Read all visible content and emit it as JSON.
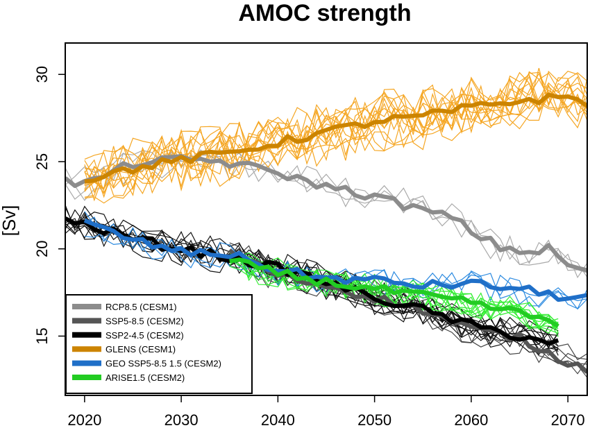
{
  "chart_data": {
    "type": "line",
    "title": "AMOC strength",
    "xlabel": "",
    "ylabel": "[Sv]",
    "xlim": [
      2018,
      2072
    ],
    "ylim": [
      11.6,
      31.8
    ],
    "xticks": [
      2020,
      2030,
      2040,
      2050,
      2060,
      2070
    ],
    "yticks": [
      15,
      20,
      25,
      30
    ],
    "grid": false,
    "legend_position": "bottom-left",
    "series": [
      {
        "name": "RCP8.5 (CESM1)",
        "color": "#8c8c8c",
        "ensemble_color": "#aaaaaa",
        "ensemble_members": 3,
        "x_start": 2018,
        "x_end": 2072,
        "mean": [
          [
            2018,
            23.9
          ],
          [
            2020,
            23.7
          ],
          [
            2025,
            24.9
          ],
          [
            2030,
            25.1
          ],
          [
            2033,
            25.1
          ],
          [
            2036,
            24.8
          ],
          [
            2040,
            24.4
          ],
          [
            2042,
            24.0
          ],
          [
            2045,
            23.6
          ],
          [
            2050,
            23.0
          ],
          [
            2055,
            22.2
          ],
          [
            2058,
            21.8
          ],
          [
            2060,
            21.0
          ],
          [
            2063,
            20.1
          ],
          [
            2066,
            19.8
          ],
          [
            2068,
            20.0
          ],
          [
            2070,
            19.1
          ],
          [
            2072,
            18.7
          ]
        ]
      },
      {
        "name": "SSP5-8.5 (CESM2)",
        "color": "#555555",
        "ensemble_color": "#444444",
        "ensemble_members": 5,
        "x_start": 2035,
        "x_end": 2072,
        "mean": [
          [
            2035,
            19.8
          ],
          [
            2040,
            18.5
          ],
          [
            2045,
            17.9
          ],
          [
            2050,
            17.2
          ],
          [
            2055,
            16.5
          ],
          [
            2060,
            15.4
          ],
          [
            2065,
            14.9
          ],
          [
            2068,
            14.0
          ],
          [
            2072,
            13.1
          ]
        ]
      },
      {
        "name": "SSP2-4.5 (CESM2)",
        "color": "#000000",
        "ensemble_color": "#111111",
        "ensemble_members": 10,
        "x_start": 2018,
        "x_end": 2069,
        "mean": [
          [
            2018,
            21.6
          ],
          [
            2020,
            21.4
          ],
          [
            2025,
            20.6
          ],
          [
            2030,
            20.0
          ],
          [
            2035,
            19.5
          ],
          [
            2040,
            18.9
          ],
          [
            2045,
            18.1
          ],
          [
            2050,
            17.2
          ],
          [
            2055,
            16.5
          ],
          [
            2060,
            15.6
          ],
          [
            2065,
            15.0
          ],
          [
            2069,
            14.6
          ]
        ]
      },
      {
        "name": "GLENS (CESM1)",
        "color": "#cc8400",
        "ensemble_color": "#f5a623",
        "ensemble_members": 14,
        "x_start": 2020,
        "x_end": 2072,
        "mean": [
          [
            2020,
            24.0
          ],
          [
            2025,
            24.6
          ],
          [
            2030,
            25.1
          ],
          [
            2035,
            25.5
          ],
          [
            2040,
            26.1
          ],
          [
            2045,
            26.7
          ],
          [
            2050,
            27.3
          ],
          [
            2055,
            27.6
          ],
          [
            2060,
            28.1
          ],
          [
            2065,
            28.5
          ],
          [
            2070,
            28.7
          ],
          [
            2072,
            28.4
          ]
        ]
      },
      {
        "name": "GEO SSP5-8.5 1.5 (CESM2)",
        "color": "#1f6fc8",
        "ensemble_color": "#2b8ae0",
        "ensemble_members": 3,
        "x_start": 2020,
        "x_end": 2072,
        "mean": [
          [
            2020,
            21.5
          ],
          [
            2025,
            20.5
          ],
          [
            2030,
            19.8
          ],
          [
            2035,
            19.7
          ],
          [
            2040,
            18.8
          ],
          [
            2045,
            18.3
          ],
          [
            2050,
            18.2
          ],
          [
            2055,
            17.9
          ],
          [
            2060,
            18.0
          ],
          [
            2065,
            17.7
          ],
          [
            2070,
            17.2
          ],
          [
            2072,
            17.2
          ]
        ]
      },
      {
        "name": "ARISE1.5 (CESM2)",
        "color": "#22cc22",
        "ensemble_color": "#33ee33",
        "ensemble_members": 10,
        "x_start": 2035,
        "x_end": 2069,
        "mean": [
          [
            2035,
            19.3
          ],
          [
            2040,
            18.6
          ],
          [
            2045,
            18.1
          ],
          [
            2050,
            17.7
          ],
          [
            2055,
            17.3
          ],
          [
            2060,
            16.9
          ],
          [
            2065,
            16.3
          ],
          [
            2069,
            15.8
          ]
        ]
      }
    ]
  }
}
